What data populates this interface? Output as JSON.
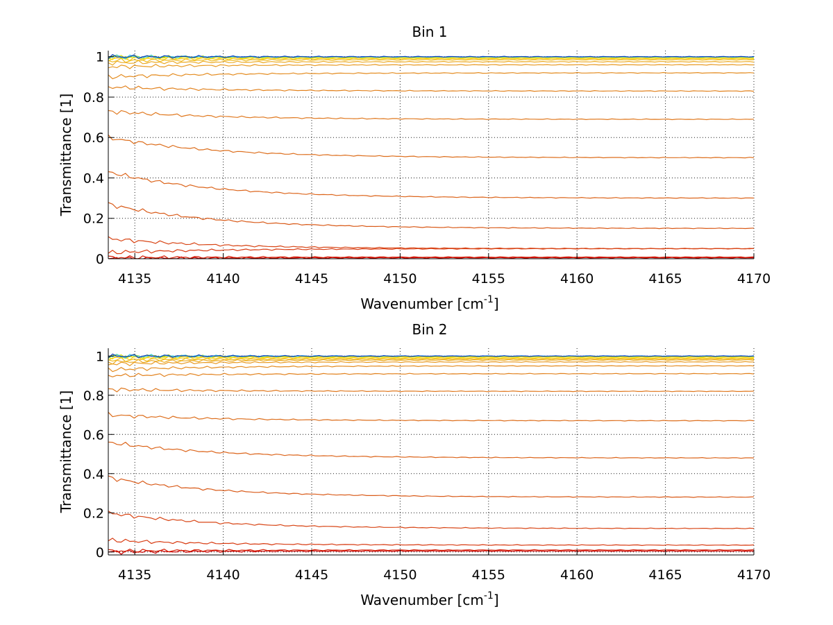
{
  "chart_data": [
    {
      "type": "line",
      "title": "Bin 1",
      "xlabel": "Wavenumber [cm",
      "xlabel_superscript": "-1",
      "xlabel_suffix": "]",
      "ylabel": "Transmittance [1]",
      "xlim": [
        4133.5,
        4170
      ],
      "ylim": [
        0,
        1.03
      ],
      "x_start": 4133.5,
      "x_end": 4170,
      "grid": true,
      "xticks": [
        4135,
        4140,
        4145,
        4150,
        4155,
        4160,
        4165,
        4170
      ],
      "xtick_labels": [
        "4135",
        "4140",
        "4145",
        "4150",
        "4155",
        "4160",
        "4165",
        "4170"
      ],
      "yticks": [
        0,
        0.2,
        0.4,
        0.6,
        0.8,
        1
      ],
      "ytick_labels": [
        "0",
        "0.2",
        "0.4",
        "0.6",
        "0.8",
        "1"
      ],
      "series": [
        {
          "start": 0.0,
          "end": 0.005,
          "color": "#cc0000"
        },
        {
          "start": 0.006,
          "end": 0.008,
          "color": "#d41a00"
        },
        {
          "start": 0.03,
          "end": 0.05,
          "color": "#d83a10"
        },
        {
          "start": 0.1,
          "end": 0.05,
          "color": "#d84515"
        },
        {
          "start": 0.27,
          "end": 0.15,
          "color": "#d95a18"
        },
        {
          "start": 0.43,
          "end": 0.3,
          "color": "#dc641a"
        },
        {
          "start": 0.6,
          "end": 0.5,
          "color": "#dd6e1c"
        },
        {
          "start": 0.73,
          "end": 0.69,
          "color": "#e0781e"
        },
        {
          "start": 0.85,
          "end": 0.83,
          "color": "#e2821e"
        },
        {
          "start": 0.9,
          "end": 0.92,
          "color": "#e48c20"
        },
        {
          "start": 0.95,
          "end": 0.96,
          "color": "#e89a22"
        },
        {
          "start": 0.97,
          "end": 0.975,
          "color": "#ecaa22"
        },
        {
          "start": 0.98,
          "end": 0.985,
          "color": "#f0ba1e"
        },
        {
          "start": 0.99,
          "end": 0.99,
          "color": "#f5cc14"
        },
        {
          "start": 0.995,
          "end": 0.995,
          "color": "#f8dc0a"
        },
        {
          "start": 1.0,
          "end": 0.997,
          "color": "#e8e800"
        },
        {
          "start": 1.0,
          "end": 0.998,
          "color": "#9fdc2a"
        },
        {
          "start": 1.0,
          "end": 0.999,
          "color": "#38c8e8"
        },
        {
          "start": 1.0,
          "end": 1.0,
          "color": "#1040c0"
        }
      ]
    },
    {
      "type": "line",
      "title": "Bin 2",
      "xlabel": "Wavenumber [cm",
      "xlabel_superscript": "-1",
      "xlabel_suffix": "]",
      "ylabel": "Transmittance [1]",
      "xlim": [
        4133.5,
        4170
      ],
      "ylim": [
        -0.015,
        1.04
      ],
      "x_start": 4133.5,
      "x_end": 4170,
      "grid": true,
      "xticks": [
        4135,
        4140,
        4145,
        4150,
        4155,
        4160,
        4165,
        4170
      ],
      "xtick_labels": [
        "4135",
        "4140",
        "4145",
        "4150",
        "4155",
        "4160",
        "4165",
        "4170"
      ],
      "yticks": [
        0,
        0.2,
        0.4,
        0.6,
        0.8,
        1
      ],
      "ytick_labels": [
        "0",
        "0.2",
        "0.4",
        "0.6",
        "0.8",
        "1"
      ],
      "series": [
        {
          "start": 0.0,
          "end": 0.005,
          "color": "#cc0000"
        },
        {
          "start": 0.005,
          "end": 0.01,
          "color": "#d41a00"
        },
        {
          "start": 0.06,
          "end": 0.035,
          "color": "#d83a10"
        },
        {
          "start": 0.2,
          "end": 0.12,
          "color": "#d84515"
        },
        {
          "start": 0.38,
          "end": 0.28,
          "color": "#d95a18"
        },
        {
          "start": 0.56,
          "end": 0.48,
          "color": "#dc641a"
        },
        {
          "start": 0.7,
          "end": 0.67,
          "color": "#dd6e1c"
        },
        {
          "start": 0.83,
          "end": 0.82,
          "color": "#e0781e"
        },
        {
          "start": 0.9,
          "end": 0.91,
          "color": "#e2821e"
        },
        {
          "start": 0.93,
          "end": 0.95,
          "color": "#e48c20"
        },
        {
          "start": 0.96,
          "end": 0.97,
          "color": "#e89a22"
        },
        {
          "start": 0.97,
          "end": 0.98,
          "color": "#ecaa22"
        },
        {
          "start": 0.98,
          "end": 0.985,
          "color": "#f0ba1e"
        },
        {
          "start": 0.99,
          "end": 0.99,
          "color": "#f5cc14"
        },
        {
          "start": 0.995,
          "end": 0.995,
          "color": "#f8dc0a"
        },
        {
          "start": 1.0,
          "end": 0.998,
          "color": "#e8e800"
        },
        {
          "start": 1.0,
          "end": 0.999,
          "color": "#9fdc2a"
        },
        {
          "start": 1.0,
          "end": 1.0,
          "color": "#38c8e8"
        },
        {
          "start": 1.0,
          "end": 1.0,
          "color": "#1040c0"
        }
      ]
    }
  ]
}
